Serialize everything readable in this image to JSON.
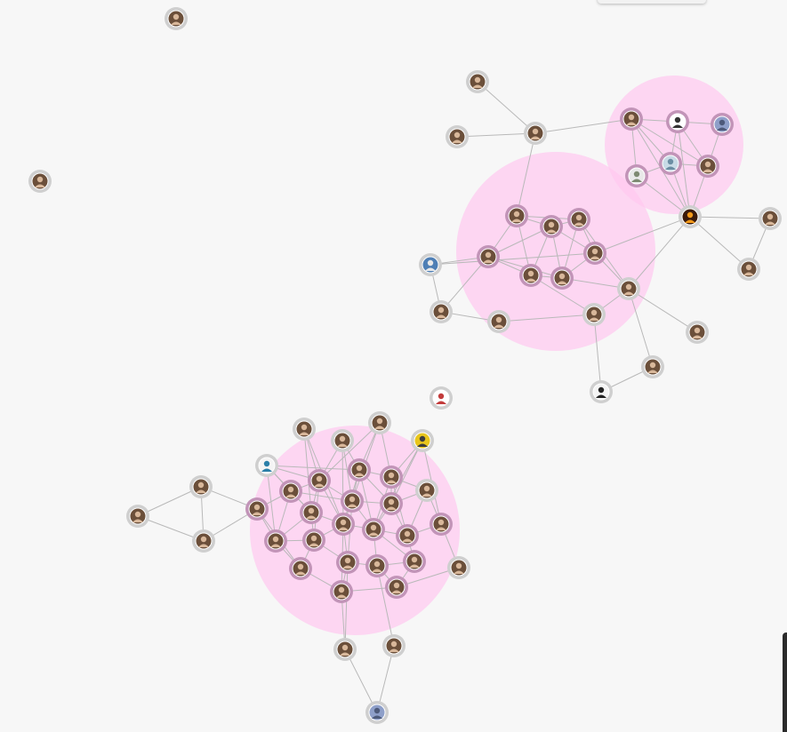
{
  "graph": {
    "theme": {
      "background": "#f7f7f7",
      "community_fill": "#ffc8f0",
      "edge_color": "#b9b9b9",
      "node_ring_default": "#cfcfcf",
      "node_ring_community": "#c294b8"
    },
    "communities": [
      {
        "id": "community-top-right"
      },
      {
        "id": "community-upper-middle"
      },
      {
        "id": "community-lower-left"
      }
    ],
    "nodes": [
      {
        "id": "n1",
        "icon": "person-avatar"
      },
      {
        "id": "n2",
        "icon": "person-avatar"
      },
      {
        "id": "n3",
        "icon": "person-avatar"
      },
      {
        "id": "n4",
        "icon": "person-avatar"
      },
      {
        "id": "n5",
        "icon": "person-avatar"
      },
      {
        "id": "n6",
        "icon": "person-avatar"
      },
      {
        "id": "n7",
        "icon": "comic-avatar"
      },
      {
        "id": "n8",
        "icon": "default-blue-avatar"
      },
      {
        "id": "n9",
        "icon": "landscape-avatar"
      },
      {
        "id": "n10",
        "icon": "globe-avatar"
      },
      {
        "id": "n11",
        "icon": "person-avatar"
      },
      {
        "id": "n12",
        "icon": "fire-avatar"
      },
      {
        "id": "n13",
        "icon": "person-avatar"
      },
      {
        "id": "n14",
        "icon": "person-avatar"
      },
      {
        "id": "n15",
        "icon": "person-avatar"
      },
      {
        "id": "n16",
        "icon": "person-avatar"
      },
      {
        "id": "n17",
        "icon": "person-avatar"
      },
      {
        "id": "n18",
        "icon": "person-avatar"
      },
      {
        "id": "n19",
        "icon": "person-avatar"
      },
      {
        "id": "n20",
        "icon": "person-avatar"
      },
      {
        "id": "n21",
        "icon": "person-avatar"
      },
      {
        "id": "n22",
        "icon": "banner-avatar"
      },
      {
        "id": "n23",
        "icon": "person-avatar"
      },
      {
        "id": "n24",
        "icon": "person-avatar"
      },
      {
        "id": "n25",
        "icon": "person-avatar"
      },
      {
        "id": "n26",
        "icon": "person-avatar"
      },
      {
        "id": "n27",
        "icon": "person-avatar"
      },
      {
        "id": "n28",
        "icon": "robot-avatar"
      },
      {
        "id": "n29",
        "icon": "person-avatar"
      },
      {
        "id": "n30",
        "icon": "crest-avatar"
      },
      {
        "id": "n31",
        "icon": "person-avatar"
      },
      {
        "id": "n32",
        "icon": "person-avatar"
      },
      {
        "id": "n33",
        "icon": "person-avatar"
      },
      {
        "id": "n34",
        "icon": "yellow-avatar"
      },
      {
        "id": "n35",
        "icon": "logo-avatar"
      },
      {
        "id": "n36",
        "icon": "person-avatar"
      },
      {
        "id": "n37",
        "icon": "person-avatar"
      },
      {
        "id": "n38",
        "icon": "person-avatar"
      },
      {
        "id": "n39",
        "icon": "person-avatar"
      },
      {
        "id": "n40",
        "icon": "person-avatar"
      },
      {
        "id": "n41",
        "icon": "person-avatar"
      },
      {
        "id": "n42",
        "icon": "person-avatar"
      },
      {
        "id": "n43",
        "icon": "person-avatar"
      },
      {
        "id": "n44",
        "icon": "person-avatar"
      },
      {
        "id": "n45",
        "icon": "person-avatar"
      },
      {
        "id": "n46",
        "icon": "person-avatar"
      },
      {
        "id": "n47",
        "icon": "person-avatar"
      },
      {
        "id": "n48",
        "icon": "person-avatar"
      },
      {
        "id": "n49",
        "icon": "person-avatar"
      },
      {
        "id": "n50",
        "icon": "person-avatar"
      },
      {
        "id": "n51",
        "icon": "person-avatar"
      },
      {
        "id": "n52",
        "icon": "person-avatar"
      },
      {
        "id": "n53",
        "icon": "person-avatar"
      },
      {
        "id": "n54",
        "icon": "person-avatar"
      },
      {
        "id": "n55",
        "icon": "person-avatar"
      },
      {
        "id": "n56",
        "icon": "person-avatar"
      },
      {
        "id": "n57",
        "icon": "person-avatar"
      },
      {
        "id": "n58",
        "icon": "person-avatar"
      },
      {
        "id": "n59",
        "icon": "person-avatar"
      },
      {
        "id": "n60",
        "icon": "person-avatar"
      },
      {
        "id": "n61",
        "icon": "default-blue-avatar"
      }
    ]
  }
}
